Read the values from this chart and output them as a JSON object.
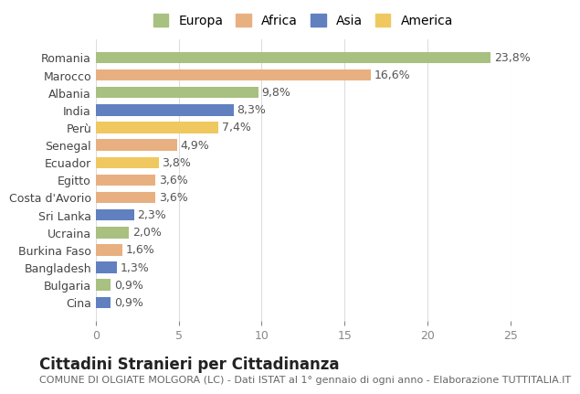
{
  "countries": [
    "Romania",
    "Marocco",
    "Albania",
    "India",
    "Perù",
    "Senegal",
    "Ecuador",
    "Egitto",
    "Costa d'Avorio",
    "Sri Lanka",
    "Ucraina",
    "Burkina Faso",
    "Bangladesh",
    "Bulgaria",
    "Cina"
  ],
  "values": [
    23.8,
    16.6,
    9.8,
    8.3,
    7.4,
    4.9,
    3.8,
    3.6,
    3.6,
    2.3,
    2.0,
    1.6,
    1.3,
    0.9,
    0.9
  ],
  "labels": [
    "23,8%",
    "16,6%",
    "9,8%",
    "8,3%",
    "7,4%",
    "4,9%",
    "3,8%",
    "3,6%",
    "3,6%",
    "2,3%",
    "2,0%",
    "1,6%",
    "1,3%",
    "0,9%",
    "0,9%"
  ],
  "colors": [
    "#a8c080",
    "#e8b080",
    "#a8c080",
    "#6080c0",
    "#f0c860",
    "#e8b080",
    "#f0c860",
    "#e8b080",
    "#e8b080",
    "#6080c0",
    "#a8c080",
    "#e8b080",
    "#6080c0",
    "#a8c080",
    "#6080c0"
  ],
  "continents": [
    "Europa",
    "Africa",
    "Europa",
    "Asia",
    "America",
    "Africa",
    "America",
    "Africa",
    "Africa",
    "Asia",
    "Europa",
    "Africa",
    "Asia",
    "Europa",
    "Asia"
  ],
  "legend_labels": [
    "Europa",
    "Africa",
    "Asia",
    "America"
  ],
  "legend_colors": [
    "#a8c080",
    "#e8b080",
    "#6080c0",
    "#f0c860"
  ],
  "title": "Cittadini Stranieri per Cittadinanza",
  "subtitle": "COMUNE DI OLGIATE MOLGORA (LC) - Dati ISTAT al 1° gennaio di ogni anno - Elaborazione TUTTITALIA.IT",
  "xlim": [
    0,
    25
  ],
  "xticks": [
    0,
    5,
    10,
    15,
    20,
    25
  ],
  "background_color": "#ffffff",
  "bar_height": 0.65,
  "label_fontsize": 9,
  "title_fontsize": 12,
  "subtitle_fontsize": 8,
  "tick_fontsize": 9,
  "legend_fontsize": 10
}
